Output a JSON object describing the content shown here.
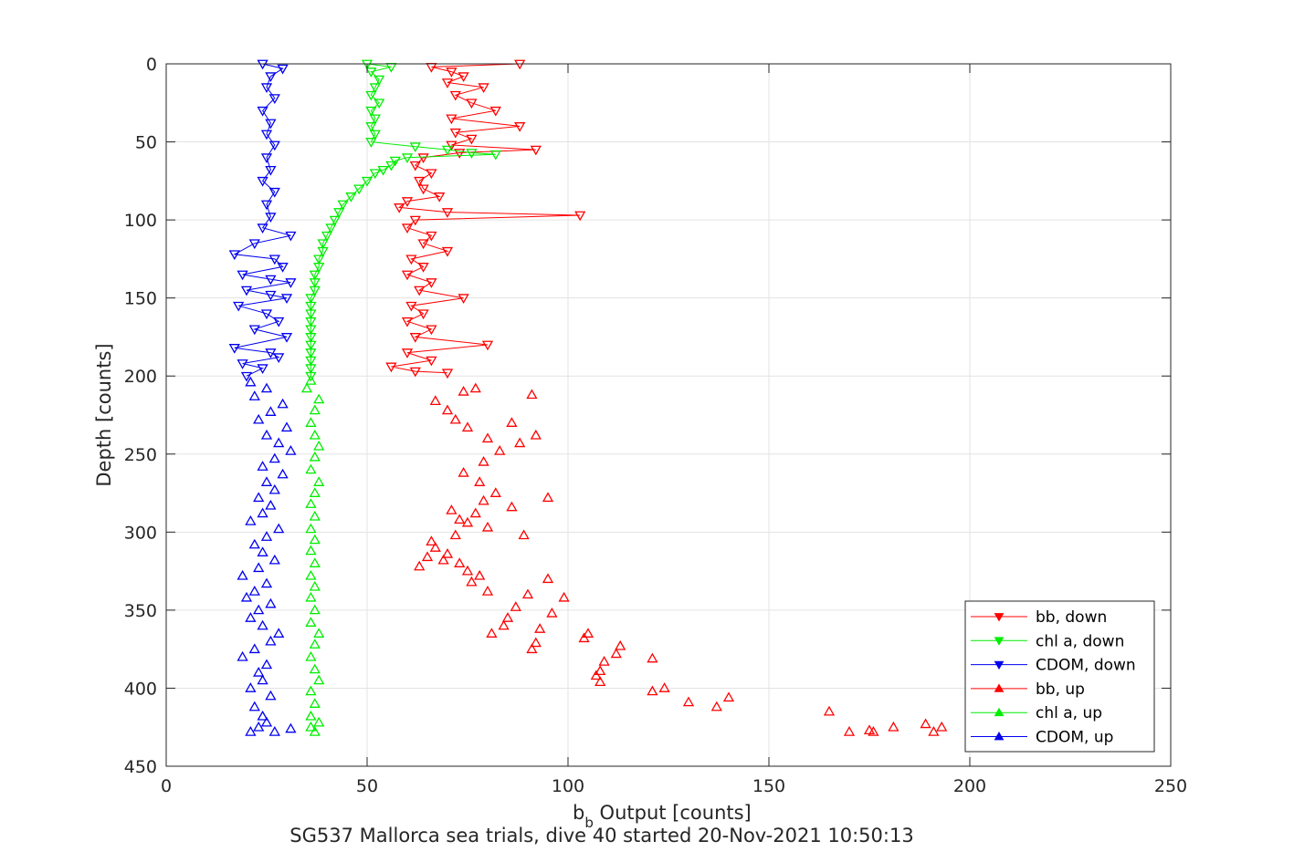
{
  "chart_data": {
    "type": "scatter",
    "title": "",
    "caption": "SG537 Mallorca sea trials, dive 40 started 20-Nov-2021 10:50:13",
    "xlabel_main": "b",
    "xlabel_sub": "b",
    "xlabel_rest": " Output [counts]",
    "ylabel": "Depth [counts]",
    "xlim": [
      0,
      250
    ],
    "ylim": [
      0,
      450
    ],
    "y_reversed": true,
    "grid": true,
    "legend_position": "lower-right",
    "x_ticks": [
      0,
      50,
      100,
      150,
      200,
      250
    ],
    "y_ticks": [
      0,
      50,
      100,
      150,
      200,
      250,
      300,
      350,
      400,
      450
    ],
    "x_tick_labels": [
      "0",
      "50",
      "100",
      "150",
      "200",
      "250"
    ],
    "y_tick_labels": [
      "0",
      "50",
      "100",
      "150",
      "200",
      "250",
      "300",
      "350",
      "400",
      "450"
    ],
    "series": [
      {
        "name": "bb, down",
        "color": "#ff0000",
        "marker": "triangle-down",
        "connected": true,
        "points": [
          [
            88,
            0
          ],
          [
            66,
            2
          ],
          [
            71,
            5
          ],
          [
            74,
            8
          ],
          [
            70,
            12
          ],
          [
            79,
            15
          ],
          [
            72,
            20
          ],
          [
            76,
            25
          ],
          [
            82,
            30
          ],
          [
            71,
            35
          ],
          [
            88,
            40
          ],
          [
            72,
            44
          ],
          [
            76,
            48
          ],
          [
            71,
            52
          ],
          [
            92,
            55
          ],
          [
            73,
            57
          ],
          [
            64,
            60
          ],
          [
            62,
            65
          ],
          [
            66,
            70
          ],
          [
            63,
            75
          ],
          [
            64,
            80
          ],
          [
            68,
            85
          ],
          [
            60,
            88
          ],
          [
            58,
            92
          ],
          [
            70,
            95
          ],
          [
            103,
            97
          ],
          [
            62,
            100
          ],
          [
            60,
            105
          ],
          [
            66,
            110
          ],
          [
            64,
            115
          ],
          [
            70,
            120
          ],
          [
            61,
            125
          ],
          [
            64,
            130
          ],
          [
            60,
            135
          ],
          [
            66,
            140
          ],
          [
            63,
            145
          ],
          [
            74,
            150
          ],
          [
            61,
            155
          ],
          [
            64,
            160
          ],
          [
            60,
            165
          ],
          [
            66,
            170
          ],
          [
            62,
            175
          ],
          [
            80,
            180
          ],
          [
            60,
            185
          ],
          [
            66,
            190
          ],
          [
            56,
            194
          ],
          [
            62,
            197
          ],
          [
            70,
            198
          ]
        ]
      },
      {
        "name": "chl a, down",
        "color": "#00ee00",
        "marker": "triangle-down",
        "connected": true,
        "points": [
          [
            50,
            0
          ],
          [
            56,
            2
          ],
          [
            51,
            5
          ],
          [
            53,
            10
          ],
          [
            52,
            15
          ],
          [
            51,
            20
          ],
          [
            53,
            25
          ],
          [
            51,
            30
          ],
          [
            52,
            35
          ],
          [
            51,
            40
          ],
          [
            52,
            45
          ],
          [
            51,
            50
          ],
          [
            62,
            53
          ],
          [
            70,
            55
          ],
          [
            76,
            57
          ],
          [
            82,
            58
          ],
          [
            60,
            60
          ],
          [
            57,
            62
          ],
          [
            56,
            65
          ],
          [
            54,
            68
          ],
          [
            52,
            70
          ],
          [
            50,
            75
          ],
          [
            48,
            80
          ],
          [
            46,
            85
          ],
          [
            44,
            90
          ],
          [
            43,
            95
          ],
          [
            42,
            100
          ],
          [
            41,
            105
          ],
          [
            40,
            110
          ],
          [
            39,
            115
          ],
          [
            39,
            120
          ],
          [
            38,
            125
          ],
          [
            38,
            130
          ],
          [
            37,
            135
          ],
          [
            37,
            140
          ],
          [
            37,
            145
          ],
          [
            36,
            150
          ],
          [
            36,
            155
          ],
          [
            36,
            160
          ],
          [
            36,
            165
          ],
          [
            36,
            170
          ],
          [
            36,
            175
          ],
          [
            36,
            180
          ],
          [
            36,
            185
          ],
          [
            36,
            190
          ],
          [
            36,
            195
          ],
          [
            36,
            200
          ]
        ]
      },
      {
        "name": "CDOM, down",
        "color": "#0000ee",
        "marker": "triangle-down",
        "connected": true,
        "points": [
          [
            24,
            0
          ],
          [
            29,
            3
          ],
          [
            26,
            8
          ],
          [
            25,
            15
          ],
          [
            27,
            22
          ],
          [
            24,
            30
          ],
          [
            26,
            38
          ],
          [
            25,
            45
          ],
          [
            27,
            52
          ],
          [
            25,
            60
          ],
          [
            26,
            68
          ],
          [
            24,
            75
          ],
          [
            27,
            82
          ],
          [
            25,
            90
          ],
          [
            26,
            98
          ],
          [
            24,
            105
          ],
          [
            31,
            110
          ],
          [
            22,
            115
          ],
          [
            17,
            122
          ],
          [
            27,
            125
          ],
          [
            29,
            130
          ],
          [
            19,
            135
          ],
          [
            26,
            138
          ],
          [
            31,
            140
          ],
          [
            20,
            145
          ],
          [
            26,
            148
          ],
          [
            30,
            150
          ],
          [
            18,
            155
          ],
          [
            25,
            160
          ],
          [
            28,
            165
          ],
          [
            22,
            170
          ],
          [
            30,
            175
          ],
          [
            17,
            182
          ],
          [
            26,
            185
          ],
          [
            28,
            188
          ],
          [
            19,
            192
          ],
          [
            24,
            195
          ],
          [
            20,
            200
          ]
        ]
      },
      {
        "name": "bb, up",
        "color": "#ff0000",
        "marker": "triangle-up",
        "connected": false,
        "points": [
          [
            193,
            425
          ],
          [
            191,
            428
          ],
          [
            189,
            423
          ],
          [
            181,
            425
          ],
          [
            176,
            428
          ],
          [
            175,
            427
          ],
          [
            170,
            428
          ],
          [
            165,
            415
          ],
          [
            140,
            406
          ],
          [
            137,
            412
          ],
          [
            130,
            409
          ],
          [
            124,
            400
          ],
          [
            121,
            402
          ],
          [
            121,
            381
          ],
          [
            113,
            373
          ],
          [
            112,
            378
          ],
          [
            109,
            383
          ],
          [
            108,
            389
          ],
          [
            107,
            392
          ],
          [
            108,
            396
          ],
          [
            105,
            365
          ],
          [
            104,
            368
          ],
          [
            99,
            342
          ],
          [
            96,
            352
          ],
          [
            93,
            362
          ],
          [
            92,
            371
          ],
          [
            91,
            375
          ],
          [
            95,
            330
          ],
          [
            90,
            340
          ],
          [
            87,
            348
          ],
          [
            85,
            355
          ],
          [
            84,
            360
          ],
          [
            81,
            365
          ],
          [
            80,
            338
          ],
          [
            78,
            328
          ],
          [
            76,
            332
          ],
          [
            75,
            325
          ],
          [
            73,
            320
          ],
          [
            70,
            314
          ],
          [
            66,
            306
          ],
          [
            72,
            302
          ],
          [
            65,
            316
          ],
          [
            63,
            322
          ],
          [
            69,
            318
          ],
          [
            67,
            310
          ],
          [
            75,
            294
          ],
          [
            77,
            288
          ],
          [
            79,
            280
          ],
          [
            71,
            286
          ],
          [
            73,
            292
          ],
          [
            80,
            297
          ],
          [
            89,
            302
          ],
          [
            95,
            278
          ],
          [
            86,
            284
          ],
          [
            82,
            275
          ],
          [
            78,
            268
          ],
          [
            74,
            262
          ],
          [
            79,
            255
          ],
          [
            83,
            248
          ],
          [
            88,
            243
          ],
          [
            92,
            238
          ],
          [
            75,
            233
          ],
          [
            72,
            228
          ],
          [
            70,
            222
          ],
          [
            67,
            216
          ],
          [
            74,
            210
          ],
          [
            77,
            208
          ],
          [
            91,
            212
          ],
          [
            86,
            230
          ],
          [
            80,
            240
          ]
        ]
      },
      {
        "name": "chl a, up",
        "color": "#00ee00",
        "marker": "triangle-up",
        "connected": false,
        "points": [
          [
            37,
            428
          ],
          [
            36,
            425
          ],
          [
            38,
            422
          ],
          [
            36,
            418
          ],
          [
            37,
            410
          ],
          [
            36,
            402
          ],
          [
            38,
            395
          ],
          [
            37,
            388
          ],
          [
            36,
            380
          ],
          [
            37,
            372
          ],
          [
            38,
            365
          ],
          [
            36,
            358
          ],
          [
            37,
            350
          ],
          [
            36,
            342
          ],
          [
            37,
            335
          ],
          [
            36,
            328
          ],
          [
            37,
            320
          ],
          [
            36,
            312
          ],
          [
            37,
            305
          ],
          [
            36,
            298
          ],
          [
            37,
            290
          ],
          [
            36,
            282
          ],
          [
            37,
            275
          ],
          [
            38,
            268
          ],
          [
            36,
            260
          ],
          [
            37,
            252
          ],
          [
            38,
            245
          ],
          [
            37,
            238
          ],
          [
            36,
            230
          ],
          [
            37,
            222
          ],
          [
            38,
            215
          ],
          [
            35,
            208
          ],
          [
            36,
            203
          ]
        ]
      },
      {
        "name": "CDOM, up",
        "color": "#0000ee",
        "marker": "triangle-up",
        "connected": false,
        "points": [
          [
            21,
            428
          ],
          [
            23,
            425
          ],
          [
            25,
            422
          ],
          [
            27,
            428
          ],
          [
            31,
            426
          ],
          [
            24,
            418
          ],
          [
            22,
            412
          ],
          [
            26,
            405
          ],
          [
            21,
            400
          ],
          [
            24,
            395
          ],
          [
            23,
            390
          ],
          [
            25,
            385
          ],
          [
            19,
            380
          ],
          [
            22,
            375
          ],
          [
            26,
            370
          ],
          [
            28,
            365
          ],
          [
            24,
            360
          ],
          [
            21,
            355
          ],
          [
            23,
            350
          ],
          [
            26,
            346
          ],
          [
            20,
            342
          ],
          [
            22,
            338
          ],
          [
            25,
            333
          ],
          [
            19,
            328
          ],
          [
            23,
            323
          ],
          [
            27,
            318
          ],
          [
            24,
            313
          ],
          [
            22,
            308
          ],
          [
            25,
            303
          ],
          [
            28,
            298
          ],
          [
            21,
            293
          ],
          [
            24,
            288
          ],
          [
            26,
            283
          ],
          [
            23,
            278
          ],
          [
            27,
            273
          ],
          [
            25,
            268
          ],
          [
            29,
            263
          ],
          [
            24,
            258
          ],
          [
            27,
            253
          ],
          [
            31,
            248
          ],
          [
            28,
            243
          ],
          [
            25,
            238
          ],
          [
            30,
            233
          ],
          [
            23,
            228
          ],
          [
            26,
            223
          ],
          [
            29,
            218
          ],
          [
            22,
            213
          ],
          [
            25,
            208
          ],
          [
            21,
            204
          ]
        ]
      }
    ]
  }
}
